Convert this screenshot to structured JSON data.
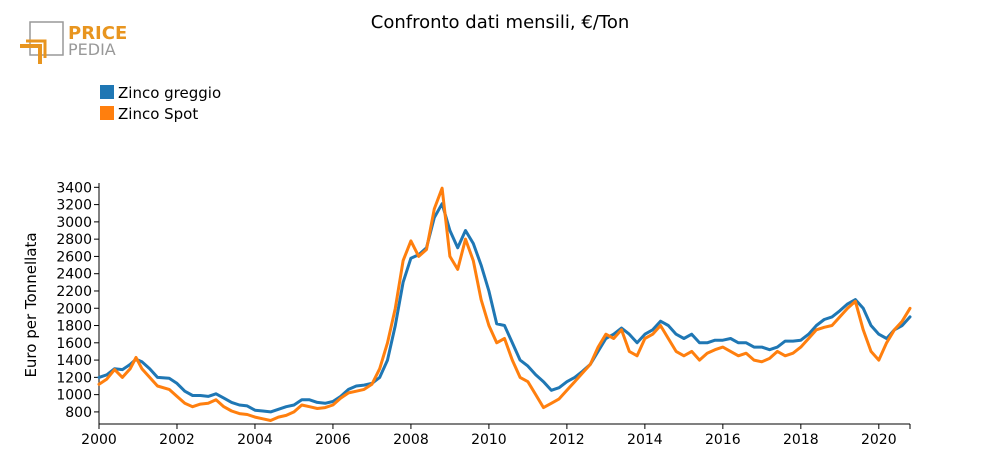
{
  "logo": {
    "line1": "PRICE",
    "line2": "PEDIA"
  },
  "colors": {
    "zinco_greggio": "#1f77b4",
    "zinco_spot": "#ff7f0e",
    "logo_orange": "#e8951f",
    "logo_gray": "#999999"
  },
  "chart_data": {
    "type": "line",
    "title": "Confronto dati mensili, €/Ton",
    "xlabel": "",
    "ylabel": "Euro per Tonnellata",
    "xlim": [
      2000,
      2020.8
    ],
    "ylim": [
      660,
      3450
    ],
    "x_ticks": [
      2000,
      2002,
      2004,
      2006,
      2008,
      2010,
      2012,
      2014,
      2016,
      2018,
      2020
    ],
    "y_ticks": [
      800,
      1000,
      1200,
      1400,
      1600,
      1800,
      2000,
      2200,
      2400,
      2600,
      2800,
      3000,
      3200,
      3400
    ],
    "grid": false,
    "legend": "top-left",
    "series": [
      {
        "name": "Zinco greggio",
        "color": "#1f77b4",
        "points": [
          [
            2000.0,
            1200
          ],
          [
            2000.2,
            1230
          ],
          [
            2000.4,
            1300
          ],
          [
            2000.6,
            1290
          ],
          [
            2000.8,
            1350
          ],
          [
            2000.95,
            1410
          ],
          [
            2001.1,
            1380
          ],
          [
            2001.3,
            1300
          ],
          [
            2001.5,
            1200
          ],
          [
            2001.8,
            1190
          ],
          [
            2002.0,
            1130
          ],
          [
            2002.2,
            1040
          ],
          [
            2002.4,
            990
          ],
          [
            2002.6,
            990
          ],
          [
            2002.8,
            980
          ],
          [
            2003.0,
            1010
          ],
          [
            2003.2,
            960
          ],
          [
            2003.4,
            910
          ],
          [
            2003.6,
            880
          ],
          [
            2003.8,
            870
          ],
          [
            2004.0,
            820
          ],
          [
            2004.2,
            810
          ],
          [
            2004.4,
            800
          ],
          [
            2004.6,
            830
          ],
          [
            2004.8,
            860
          ],
          [
            2005.0,
            880
          ],
          [
            2005.2,
            940
          ],
          [
            2005.4,
            940
          ],
          [
            2005.6,
            910
          ],
          [
            2005.8,
            900
          ],
          [
            2006.0,
            920
          ],
          [
            2006.2,
            980
          ],
          [
            2006.4,
            1060
          ],
          [
            2006.6,
            1100
          ],
          [
            2006.8,
            1110
          ],
          [
            2007.0,
            1130
          ],
          [
            2007.2,
            1200
          ],
          [
            2007.4,
            1400
          ],
          [
            2007.6,
            1800
          ],
          [
            2007.8,
            2300
          ],
          [
            2008.0,
            2580
          ],
          [
            2008.2,
            2620
          ],
          [
            2008.4,
            2700
          ],
          [
            2008.6,
            3050
          ],
          [
            2008.8,
            3210
          ],
          [
            2009.0,
            2900
          ],
          [
            2009.2,
            2700
          ],
          [
            2009.4,
            2900
          ],
          [
            2009.6,
            2750
          ],
          [
            2009.8,
            2500
          ],
          [
            2010.0,
            2200
          ],
          [
            2010.2,
            1820
          ],
          [
            2010.4,
            1800
          ],
          [
            2010.6,
            1600
          ],
          [
            2010.8,
            1400
          ],
          [
            2011.0,
            1330
          ],
          [
            2011.2,
            1230
          ],
          [
            2011.4,
            1150
          ],
          [
            2011.6,
            1050
          ],
          [
            2011.8,
            1080
          ],
          [
            2012.0,
            1150
          ],
          [
            2012.2,
            1200
          ],
          [
            2012.4,
            1270
          ],
          [
            2012.6,
            1350
          ],
          [
            2012.8,
            1500
          ],
          [
            2013.0,
            1650
          ],
          [
            2013.2,
            1700
          ],
          [
            2013.4,
            1770
          ],
          [
            2013.6,
            1700
          ],
          [
            2013.8,
            1600
          ],
          [
            2014.0,
            1700
          ],
          [
            2014.2,
            1750
          ],
          [
            2014.4,
            1850
          ],
          [
            2014.6,
            1800
          ],
          [
            2014.8,
            1700
          ],
          [
            2015.0,
            1650
          ],
          [
            2015.2,
            1700
          ],
          [
            2015.4,
            1600
          ],
          [
            2015.6,
            1600
          ],
          [
            2015.8,
            1630
          ],
          [
            2016.0,
            1630
          ],
          [
            2016.2,
            1650
          ],
          [
            2016.4,
            1600
          ],
          [
            2016.6,
            1600
          ],
          [
            2016.8,
            1550
          ],
          [
            2017.0,
            1550
          ],
          [
            2017.2,
            1520
          ],
          [
            2017.4,
            1550
          ],
          [
            2017.6,
            1620
          ],
          [
            2017.8,
            1620
          ],
          [
            2018.0,
            1630
          ],
          [
            2018.2,
            1700
          ],
          [
            2018.4,
            1800
          ],
          [
            2018.6,
            1870
          ],
          [
            2018.8,
            1900
          ],
          [
            2019.0,
            1970
          ],
          [
            2019.2,
            2050
          ],
          [
            2019.4,
            2100
          ],
          [
            2019.6,
            2000
          ],
          [
            2019.8,
            1800
          ],
          [
            2020.0,
            1700
          ],
          [
            2020.2,
            1650
          ],
          [
            2020.4,
            1750
          ],
          [
            2020.6,
            1800
          ],
          [
            2020.8,
            1900
          ]
        ]
      },
      {
        "name": "Zinco Spot",
        "color": "#ff7f0e",
        "points": [
          [
            2000.0,
            1120
          ],
          [
            2000.2,
            1180
          ],
          [
            2000.4,
            1290
          ],
          [
            2000.6,
            1200
          ],
          [
            2000.8,
            1300
          ],
          [
            2000.95,
            1430
          ],
          [
            2001.1,
            1300
          ],
          [
            2001.3,
            1200
          ],
          [
            2001.5,
            1100
          ],
          [
            2001.8,
            1060
          ],
          [
            2002.0,
            980
          ],
          [
            2002.2,
            900
          ],
          [
            2002.4,
            860
          ],
          [
            2002.6,
            890
          ],
          [
            2002.8,
            900
          ],
          [
            2003.0,
            940
          ],
          [
            2003.2,
            860
          ],
          [
            2003.4,
            810
          ],
          [
            2003.6,
            780
          ],
          [
            2003.8,
            770
          ],
          [
            2004.0,
            740
          ],
          [
            2004.2,
            720
          ],
          [
            2004.4,
            700
          ],
          [
            2004.6,
            740
          ],
          [
            2004.8,
            760
          ],
          [
            2005.0,
            800
          ],
          [
            2005.2,
            880
          ],
          [
            2005.4,
            860
          ],
          [
            2005.6,
            840
          ],
          [
            2005.8,
            850
          ],
          [
            2006.0,
            880
          ],
          [
            2006.2,
            960
          ],
          [
            2006.4,
            1020
          ],
          [
            2006.6,
            1040
          ],
          [
            2006.8,
            1060
          ],
          [
            2007.0,
            1120
          ],
          [
            2007.2,
            1300
          ],
          [
            2007.4,
            1600
          ],
          [
            2007.6,
            2000
          ],
          [
            2007.8,
            2550
          ],
          [
            2008.0,
            2780
          ],
          [
            2008.2,
            2600
          ],
          [
            2008.4,
            2680
          ],
          [
            2008.6,
            3150
          ],
          [
            2008.8,
            3390
          ],
          [
            2009.0,
            2600
          ],
          [
            2009.2,
            2450
          ],
          [
            2009.4,
            2800
          ],
          [
            2009.6,
            2550
          ],
          [
            2009.8,
            2100
          ],
          [
            2010.0,
            1800
          ],
          [
            2010.2,
            1600
          ],
          [
            2010.4,
            1650
          ],
          [
            2010.6,
            1400
          ],
          [
            2010.8,
            1200
          ],
          [
            2011.0,
            1150
          ],
          [
            2011.2,
            1000
          ],
          [
            2011.4,
            850
          ],
          [
            2011.6,
            900
          ],
          [
            2011.8,
            950
          ],
          [
            2012.0,
            1050
          ],
          [
            2012.2,
            1150
          ],
          [
            2012.4,
            1250
          ],
          [
            2012.6,
            1350
          ],
          [
            2012.8,
            1550
          ],
          [
            2013.0,
            1700
          ],
          [
            2013.2,
            1650
          ],
          [
            2013.4,
            1750
          ],
          [
            2013.6,
            1500
          ],
          [
            2013.8,
            1450
          ],
          [
            2014.0,
            1650
          ],
          [
            2014.2,
            1700
          ],
          [
            2014.4,
            1800
          ],
          [
            2014.6,
            1650
          ],
          [
            2014.8,
            1500
          ],
          [
            2015.0,
            1450
          ],
          [
            2015.2,
            1500
          ],
          [
            2015.4,
            1400
          ],
          [
            2015.6,
            1480
          ],
          [
            2015.8,
            1520
          ],
          [
            2016.0,
            1550
          ],
          [
            2016.2,
            1500
          ],
          [
            2016.4,
            1450
          ],
          [
            2016.6,
            1480
          ],
          [
            2016.8,
            1400
          ],
          [
            2017.0,
            1380
          ],
          [
            2017.2,
            1420
          ],
          [
            2017.4,
            1500
          ],
          [
            2017.6,
            1450
          ],
          [
            2017.8,
            1480
          ],
          [
            2018.0,
            1550
          ],
          [
            2018.2,
            1650
          ],
          [
            2018.4,
            1750
          ],
          [
            2018.6,
            1780
          ],
          [
            2018.8,
            1800
          ],
          [
            2019.0,
            1900
          ],
          [
            2019.2,
            2000
          ],
          [
            2019.4,
            2080
          ],
          [
            2019.6,
            1750
          ],
          [
            2019.8,
            1500
          ],
          [
            2020.0,
            1400
          ],
          [
            2020.2,
            1600
          ],
          [
            2020.4,
            1750
          ],
          [
            2020.6,
            1850
          ],
          [
            2020.8,
            2000
          ]
        ]
      }
    ]
  }
}
